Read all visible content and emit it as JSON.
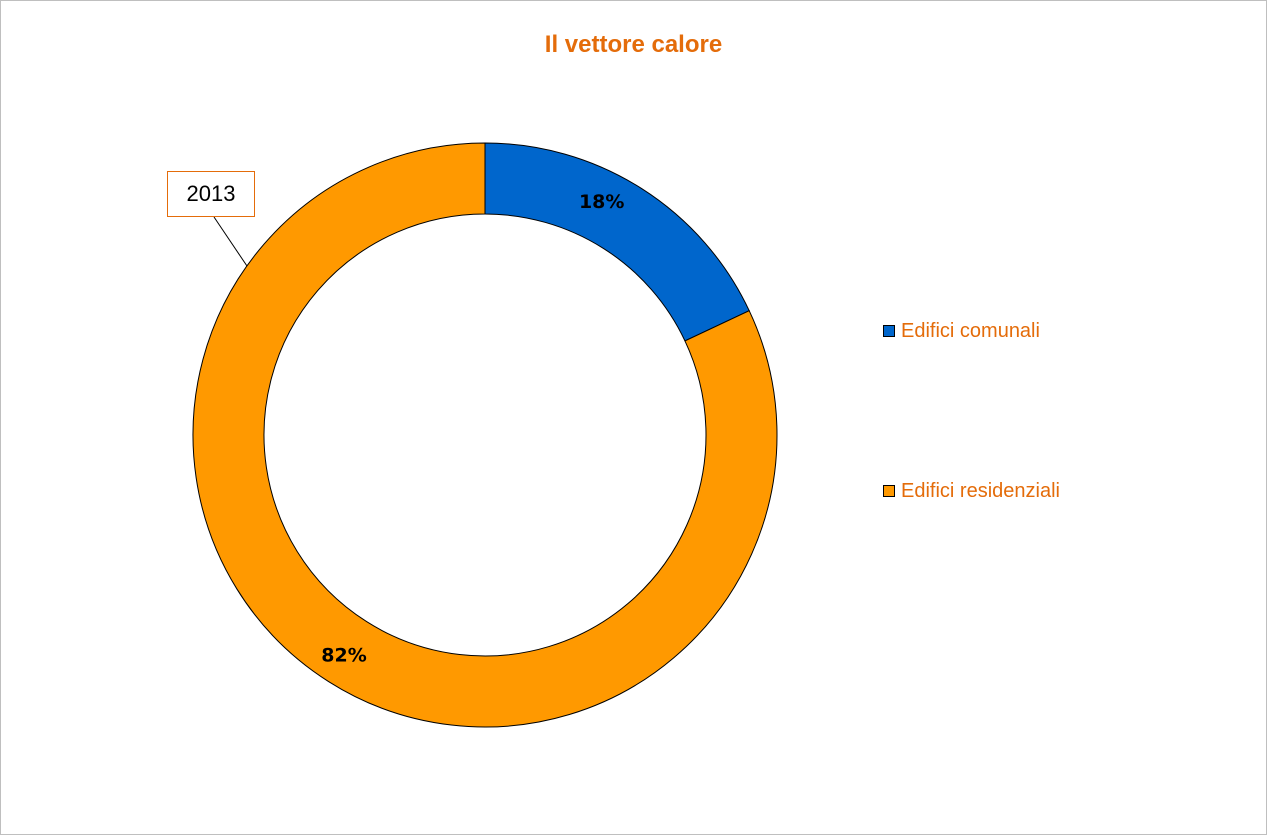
{
  "chart_data": {
    "type": "pie",
    "variant": "doughnut",
    "title": "Il vettore calore",
    "series_label": "2013",
    "categories": [
      "Edifici comunali",
      "Edifici residenziali"
    ],
    "values": [
      18,
      82
    ],
    "data_labels": [
      "18%",
      "82%"
    ],
    "colors": [
      "#0066cc",
      "#ff9900"
    ],
    "legend": "right"
  }
}
